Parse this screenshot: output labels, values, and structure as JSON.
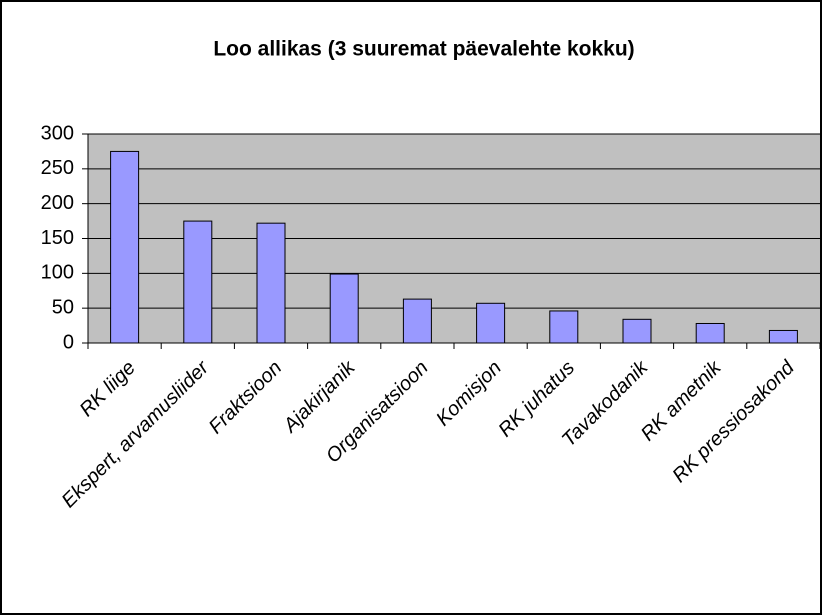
{
  "chart_data": {
    "type": "bar",
    "title": "Loo allikas (3 suuremat päevalehte kokku)",
    "categories": [
      "RK liige",
      "Ekspert, arvamusliider",
      "Fraktsioon",
      "Ajakirjanik",
      "Organisatsioon",
      "Komisjon",
      "RK juhatus",
      "Tavakodanik",
      "RK ametnik",
      "RK pressiosakond"
    ],
    "values": [
      275,
      175,
      172,
      99,
      63,
      57,
      46,
      34,
      28,
      18
    ],
    "color": "#9999ff",
    "ylim": [
      0,
      300
    ],
    "yticks": [
      0,
      50,
      100,
      150,
      200,
      250,
      300
    ],
    "grid": true
  }
}
